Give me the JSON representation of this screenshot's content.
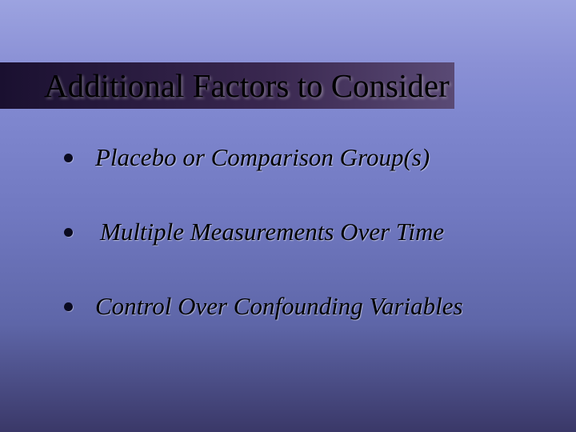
{
  "slide": {
    "title": "Additional Factors to Consider",
    "bullets": [
      "Placebo or Comparison Group(s)",
      "Multiple Measurements Over Time",
      "Control Over Confounding Variables"
    ],
    "style": {
      "background_gradient": [
        "#9ca3e0",
        "#8a90d5",
        "#8088d0",
        "#7078c0",
        "#5e66a8",
        "#3a3868"
      ],
      "title_fontsize": 41,
      "title_color": "#000000",
      "title_bg_width": 568,
      "title_bg_height": 58,
      "title_bg_gradient": [
        "#1a1030",
        "#3a2850",
        "#5a4a75"
      ],
      "bullet_fontsize": 31,
      "bullet_style": "italic",
      "bullet_color": "#000000",
      "bullet_marker_color": "#0a0a20",
      "bullet_marker_size": 11,
      "bullet_spacing": 54
    }
  }
}
